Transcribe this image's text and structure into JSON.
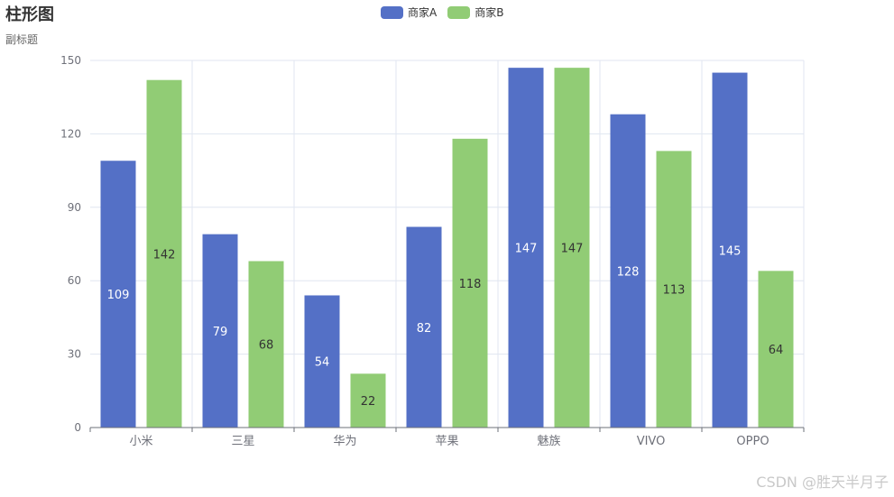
{
  "chart_data": {
    "type": "bar",
    "title": "柱形图",
    "subtitle": "副标题",
    "categories": [
      "小米",
      "三星",
      "华为",
      "苹果",
      "魅族",
      "VIVO",
      "OPPO"
    ],
    "series": [
      {
        "name": "商家A",
        "values": [
          109,
          79,
          54,
          82,
          147,
          128,
          145
        ],
        "color": "#5470c6",
        "label_color": "#ffffff"
      },
      {
        "name": "商家B",
        "values": [
          142,
          68,
          22,
          118,
          147,
          113,
          64
        ],
        "color": "#91cc75",
        "label_color": "#333333"
      }
    ],
    "ylim": [
      0,
      150
    ],
    "yticks": [
      0,
      30,
      60,
      90,
      120,
      150
    ],
    "grid": true,
    "legend_position": "top-center",
    "data_labels": true
  },
  "watermark": "CSDN @胜天半月子"
}
